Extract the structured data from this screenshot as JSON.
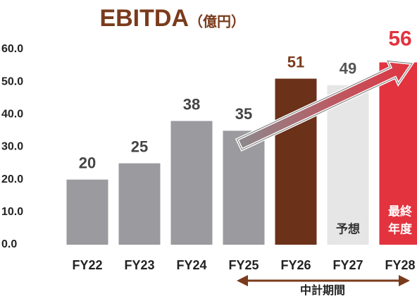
{
  "chart_data": {
    "type": "bar",
    "title": "EBITDA",
    "subtitle": "（億円）",
    "categories": [
      "FY22",
      "FY23",
      "FY24",
      "FY25",
      "FY26",
      "FY27",
      "FY28"
    ],
    "values": [
      20,
      25,
      38,
      35,
      51,
      49,
      56
    ],
    "colors": [
      "#9b9a9f",
      "#9b9a9f",
      "#9b9a9f",
      "#9b9a9f",
      "#6b3119",
      "#e6e6e6",
      "#e2333f"
    ],
    "label_colors": [
      "#444444",
      "#444444",
      "#444444",
      "#444444",
      "#7a3b1c",
      "#555555",
      "#e2333f"
    ],
    "bar_notes": [
      null,
      null,
      null,
      null,
      null,
      [
        "予想"
      ],
      [
        "最終",
        "年度"
      ]
    ],
    "bar_note_colors": [
      null,
      null,
      null,
      null,
      null,
      "#333333",
      "#ffffff"
    ],
    "period_label": "中計期間",
    "ylim": [
      0,
      60
    ],
    "yticks": [
      {
        "value": 0,
        "label": "0.0"
      },
      {
        "value": 10,
        "label": "10.0"
      },
      {
        "value": 20,
        "label": "20.0"
      },
      {
        "value": 30,
        "label": "30.0"
      },
      {
        "value": 40,
        "label": "40.0"
      },
      {
        "value": 50,
        "label": "50.0"
      },
      {
        "value": 60,
        "label": "60.0"
      }
    ],
    "grid": false
  }
}
